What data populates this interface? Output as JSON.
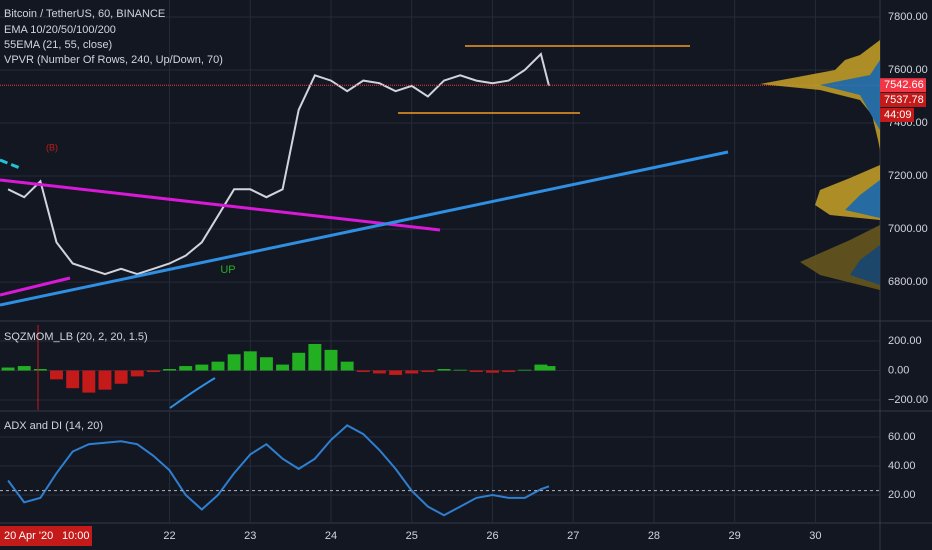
{
  "header": {
    "title": "Bitcoin / TetherUS, 60, BINANCE",
    "indicators": [
      "EMA 10/20/50/100/200",
      "55EMA (21, 55, close)",
      "VPVR (Number Of Rows, 240, Up/Down, 70)"
    ]
  },
  "price_tags": [
    "7537.78",
    "44:09"
  ],
  "crosshair": {
    "date": "20 Apr '20",
    "time": "10:00"
  },
  "chart_data": [
    {
      "type": "line",
      "color": "#d1d4dc",
      "x": [
        20.0,
        20.2,
        20.4,
        20.6,
        20.8,
        21.0,
        21.2,
        21.4,
        21.6,
        21.8,
        22.0,
        22.2,
        22.4,
        22.6,
        22.8,
        23.0,
        23.2,
        23.4,
        23.6,
        23.8,
        24.0,
        24.2,
        24.4,
        24.6,
        24.8,
        25.0,
        25.2,
        25.4,
        25.6,
        25.8,
        26.0,
        26.2,
        26.4,
        26.6,
        26.7
      ],
      "values": [
        7150,
        7120,
        7180,
        6950,
        6870,
        6850,
        6830,
        6850,
        6830,
        6850,
        6870,
        6900,
        6950,
        7050,
        7150,
        7150,
        7120,
        7150,
        7450,
        7580,
        7560,
        7520,
        7560,
        7550,
        7520,
        7540,
        7500,
        7560,
        7580,
        7560,
        7550,
        7560,
        7600,
        7660,
        7540
      ],
      "xlim": [
        19.9,
        30.8
      ],
      "xticks": [
        22,
        23,
        24,
        25,
        26,
        27,
        28,
        29,
        30
      ],
      "ylim": [
        6657,
        7864
      ],
      "yticks": [
        {
          "value": 6800,
          "label": "6800.00"
        },
        {
          "value": 7000,
          "label": "7000.00"
        },
        {
          "value": 7200,
          "label": "7200.00"
        },
        {
          "value": 7400,
          "label": "7400.00"
        },
        {
          "value": 7600,
          "label": "7600.00"
        },
        {
          "value": 7800,
          "label": "7800.00"
        }
      ],
      "last_price": 7542.66,
      "annotations": [
        "UP",
        "(B)"
      ],
      "grid": true
    },
    {
      "type": "bar",
      "title": "SQZMOM_LB (20, 2, 20, 1.5)",
      "up_color": "#22b022",
      "down_color": "#c41a1a",
      "x": [
        20.0,
        20.2,
        20.4,
        20.6,
        20.8,
        21.0,
        21.2,
        21.4,
        21.6,
        21.8,
        22.0,
        22.2,
        22.4,
        22.6,
        22.8,
        23.0,
        23.2,
        23.4,
        23.6,
        23.8,
        24.0,
        24.2,
        24.4,
        24.6,
        24.8,
        25.0,
        25.2,
        25.4,
        25.6,
        25.8,
        26.0,
        26.2,
        26.4,
        26.6,
        26.7
      ],
      "values": [
        20,
        30,
        10,
        -60,
        -120,
        -150,
        -130,
        -90,
        -40,
        -10,
        10,
        30,
        40,
        60,
        110,
        130,
        90,
        40,
        120,
        180,
        140,
        60,
        -10,
        -20,
        -30,
        -20,
        -10,
        10,
        5,
        -10,
        -15,
        -10,
        5,
        40,
        30
      ],
      "xlim": [
        19.9,
        30.8
      ],
      "ylim": [
        -268,
        329
      ],
      "yticks": [
        {
          "value": -200,
          "label": "−200.00"
        },
        {
          "value": 0,
          "label": "0.00"
        },
        {
          "value": 200,
          "label": "200.00"
        }
      ],
      "grid": true
    },
    {
      "type": "line",
      "title": "ADX and DI (14, 20)",
      "color": "#2f7fd1",
      "x": [
        20.0,
        20.2,
        20.4,
        20.6,
        20.8,
        21.0,
        21.2,
        21.4,
        21.6,
        21.8,
        22.0,
        22.2,
        22.4,
        22.6,
        22.8,
        23.0,
        23.2,
        23.4,
        23.6,
        23.8,
        24.0,
        24.2,
        24.4,
        24.6,
        24.8,
        25.0,
        25.2,
        25.4,
        25.6,
        25.8,
        26.0,
        26.2,
        26.4,
        26.6,
        26.7
      ],
      "values": [
        30,
        15,
        18,
        35,
        50,
        55,
        56,
        57,
        55,
        47,
        37,
        20,
        10,
        20,
        35,
        48,
        55,
        45,
        38,
        45,
        58,
        68,
        62,
        51,
        38,
        23,
        12,
        6,
        12,
        18,
        20,
        18,
        18,
        24,
        26
      ],
      "xlim": [
        19.9,
        30.8
      ],
      "ylim": [
        1.4,
        77.2
      ],
      "yticks": [
        {
          "value": 20,
          "label": "20.00"
        },
        {
          "value": 40,
          "label": "40.00"
        },
        {
          "value": 60,
          "label": "60.00"
        }
      ],
      "level": 23,
      "grid": true
    }
  ]
}
